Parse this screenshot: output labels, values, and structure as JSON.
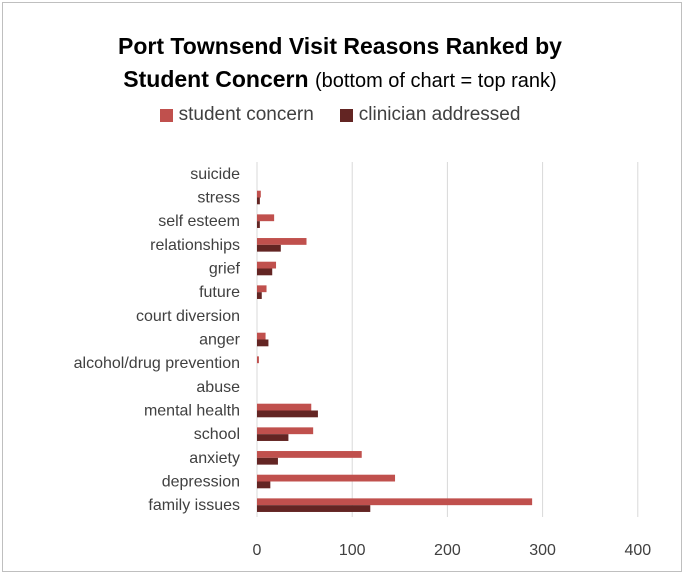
{
  "chart_data": {
    "type": "bar",
    "orientation": "horizontal",
    "title_bold_1": "Port Townsend Visit Reasons Ranked by",
    "title_bold_2": "Student Concern",
    "subtitle": "(bottom of chart = top rank)",
    "categories": [
      "suicide",
      "stress",
      "self esteem",
      "relationships",
      "grief",
      "future",
      "court diversion",
      "anger",
      "alcohol/drug prevention",
      "abuse",
      "mental health",
      "school",
      "anxiety",
      "depression",
      "family issues"
    ],
    "series": [
      {
        "name": "student concern",
        "color": "#c0504d",
        "values": [
          0,
          4,
          18,
          52,
          20,
          10,
          0,
          9,
          2,
          0,
          57,
          59,
          110,
          145,
          289
        ]
      },
      {
        "name": "clinician addressed",
        "color": "#632523",
        "values": [
          0,
          3,
          3,
          25,
          16,
          5,
          0,
          12,
          0,
          0,
          64,
          33,
          22,
          14,
          119
        ]
      }
    ],
    "xlim": [
      0,
      400
    ],
    "xticks": [
      0,
      100,
      200,
      300,
      400
    ],
    "grid": true,
    "legend_position": "top"
  }
}
